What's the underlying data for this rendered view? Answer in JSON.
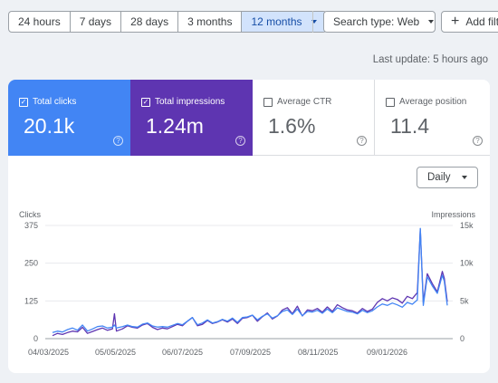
{
  "date_range": {
    "options": [
      {
        "label": "24 hours",
        "active": false
      },
      {
        "label": "7 days",
        "active": false
      },
      {
        "label": "28 days",
        "active": false
      },
      {
        "label": "3 months",
        "active": false
      },
      {
        "label": "12 months",
        "active": true
      }
    ]
  },
  "filters": {
    "search_type_label": "Search type: Web",
    "add_filter_label": "Add filt"
  },
  "last_update": "Last update: 5 hours ago",
  "metrics": {
    "clicks": {
      "label": "Total clicks",
      "value": "20.1k",
      "checked": true,
      "color": "#4285f4"
    },
    "impressions": {
      "label": "Total impressions",
      "value": "1.24m",
      "checked": true,
      "color": "#5e35b1"
    },
    "ctr": {
      "label": "Average CTR",
      "value": "1.6%",
      "checked": false
    },
    "position": {
      "label": "Average position",
      "value": "11.4",
      "checked": false
    }
  },
  "granularity": "Daily",
  "chart_data": {
    "type": "line",
    "left_axis": {
      "label": "Clicks",
      "ticks": [
        "375",
        "250",
        "125",
        "0"
      ],
      "range": [
        0,
        375
      ]
    },
    "right_axis": {
      "label": "Impressions",
      "ticks": [
        "15k",
        "10k",
        "5k",
        "0"
      ],
      "range": [
        0,
        15000
      ]
    },
    "x_ticks": [
      "04/03/2025",
      "05/05/2025",
      "06/07/2025",
      "07/09/2025",
      "08/11/2025",
      "09/01/2026"
    ],
    "grid": true,
    "series": [
      {
        "key": "impressions",
        "color": "#5e35b1",
        "axis": "right",
        "x": [
          0,
          5,
          10,
          15,
          20,
          25,
          30,
          35,
          40,
          45,
          50,
          55,
          60,
          62,
          64,
          70,
          75,
          80,
          85,
          90,
          95,
          100,
          105,
          110,
          115,
          120,
          125,
          130,
          135,
          140,
          145,
          150,
          155,
          160,
          165,
          170,
          175,
          180,
          185,
          190,
          195,
          200,
          205,
          210,
          215,
          220,
          225,
          230,
          235,
          240,
          245,
          250,
          255,
          260,
          265,
          270,
          275,
          280,
          285,
          290,
          295,
          300,
          305,
          310,
          315,
          320,
          325,
          330,
          335,
          340,
          345,
          350,
          355,
          360,
          365,
          368,
          371,
          375,
          380,
          385,
          390,
          392,
          395
        ],
        "y": [
          400,
          700,
          550,
          800,
          1000,
          900,
          1500,
          700,
          950,
          1200,
          1400,
          1100,
          1300,
          3300,
          1000,
          1300,
          1700,
          1500,
          1400,
          1800,
          2000,
          1500,
          1200,
          1400,
          1300,
          1600,
          1900,
          1700,
          2300,
          2800,
          1700,
          1900,
          2400,
          2000,
          2200,
          2500,
          2200,
          2600,
          2000,
          2700,
          2800,
          3100,
          2300,
          2900,
          3400,
          2600,
          3000,
          3800,
          4100,
          3300,
          4300,
          3000,
          3800,
          3700,
          4000,
          3500,
          4200,
          3600,
          4500,
          4100,
          3800,
          3700,
          3400,
          4000,
          3600,
          3900,
          4800,
          5300,
          5000,
          5400,
          5200,
          4700,
          5600,
          5300,
          6100,
          14500,
          4800,
          8600,
          7300,
          6200,
          8900,
          8000,
          4900
        ]
      },
      {
        "key": "clicks",
        "color": "#4285f4",
        "axis": "left",
        "x": [
          0,
          5,
          10,
          15,
          20,
          25,
          30,
          35,
          40,
          45,
          50,
          55,
          60,
          62,
          64,
          70,
          75,
          80,
          85,
          90,
          95,
          100,
          105,
          110,
          115,
          120,
          125,
          130,
          135,
          140,
          145,
          150,
          155,
          160,
          165,
          170,
          175,
          180,
          185,
          190,
          195,
          200,
          205,
          210,
          215,
          220,
          225,
          230,
          235,
          240,
          245,
          250,
          255,
          260,
          265,
          270,
          275,
          280,
          285,
          290,
          295,
          300,
          305,
          310,
          315,
          320,
          325,
          330,
          335,
          340,
          345,
          350,
          355,
          360,
          365,
          368,
          371,
          375,
          380,
          385,
          390,
          392,
          395
        ],
        "y": [
          20,
          25,
          22,
          30,
          35,
          28,
          45,
          25,
          32,
          40,
          42,
          35,
          38,
          45,
          35,
          40,
          45,
          40,
          38,
          48,
          52,
          42,
          38,
          40,
          38,
          44,
          50,
          46,
          58,
          70,
          46,
          52,
          62,
          52,
          56,
          64,
          58,
          68,
          54,
          70,
          72,
          78,
          62,
          74,
          82,
          68,
          76,
          90,
          95,
          80,
          98,
          76,
          90,
          88,
          94,
          84,
          98,
          86,
          102,
          96,
          90,
          88,
          82,
          94,
          86,
          92,
          105,
          115,
          110,
          118,
          112,
          104,
          120,
          114,
          128,
          365,
          110,
          205,
          175,
          150,
          210,
          190,
          110
        ]
      }
    ]
  }
}
